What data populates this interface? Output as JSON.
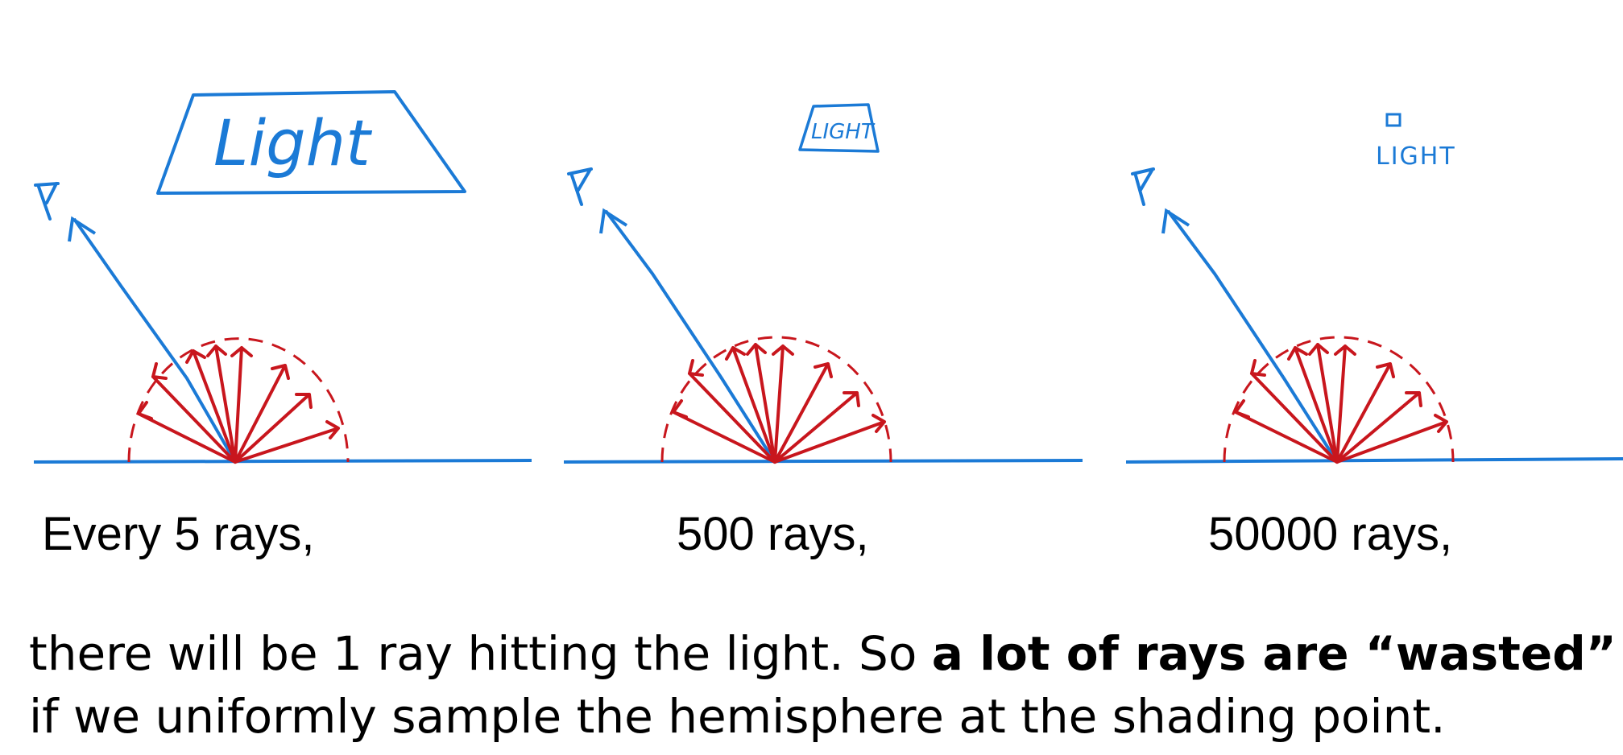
{
  "colors": {
    "blue": "#1b7ad6",
    "red": "#c8161d",
    "text": "#000000",
    "background": "#ffffff"
  },
  "panels": [
    {
      "caption": "Every 5 rays,",
      "light_label": "Light",
      "light_size": "large"
    },
    {
      "caption": "500 rays,",
      "light_label": "LIGHT",
      "light_size": "medium"
    },
    {
      "caption": "50000 rays,",
      "light_label": "LIGHT",
      "light_size": "small"
    }
  ],
  "body": {
    "line1_pre": "there will be 1 ray hitting the light. So ",
    "line1_bold": "a lot of rays are “wasted”",
    "line2": "if we uniformly sample the hemisphere at the shading point."
  }
}
